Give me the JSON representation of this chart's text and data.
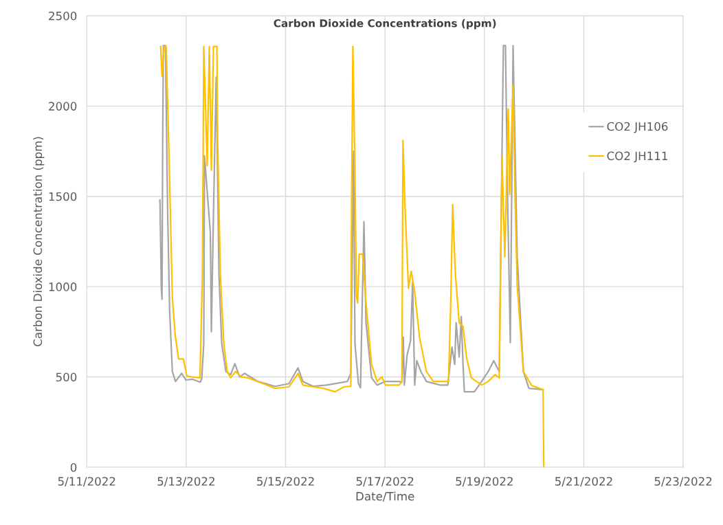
{
  "chart_data": {
    "type": "line",
    "title": "Carbon Dioxide Concentrations (ppm)",
    "xlabel": "Date/Time",
    "ylabel": "Carbon Dioxide Concentration (ppm)",
    "xlim": [
      "2022-05-11",
      "2022-05-23"
    ],
    "xticks": [
      {
        "value": "2022-05-11",
        "label": "5/11/2022"
      },
      {
        "value": "2022-05-13",
        "label": "5/13/2022"
      },
      {
        "value": "2022-05-15",
        "label": "5/15/2022"
      },
      {
        "value": "2022-05-17",
        "label": "5/17/2022"
      },
      {
        "value": "2022-05-19",
        "label": "5/19/2022"
      },
      {
        "value": "2022-05-21",
        "label": "5/21/2022"
      },
      {
        "value": "2022-05-23",
        "label": "5/23/2022"
      }
    ],
    "ylim": [
      0,
      2500
    ],
    "yticks": [
      0,
      500,
      1000,
      1500,
      2000,
      2500
    ],
    "grid": true,
    "legend": "right",
    "marker": "none",
    "line_style": "solid",
    "series": [
      {
        "name": "CO2 JH106",
        "color": "#a5a5a5",
        "x": [
          "2022-05-12T11:20",
          "2022-05-12T12:00",
          "2022-05-12T12:20",
          "2022-05-12T12:40",
          "2022-05-12T13:00",
          "2022-05-12T14:00",
          "2022-05-12T15:00",
          "2022-05-12T16:00",
          "2022-05-12T17:20",
          "2022-05-12T18:50",
          "2022-05-12T21:50",
          "2022-05-12T23:50",
          "2022-05-13T03:10",
          "2022-05-13T06:50",
          "2022-05-13T07:30",
          "2022-05-13T08:30",
          "2022-05-13T08:50",
          "2022-05-13T11:40",
          "2022-05-13T12:10",
          "2022-05-13T13:10",
          "2022-05-13T14:30",
          "2022-05-13T15:50",
          "2022-05-13T17:10",
          "2022-05-13T19:10",
          "2022-05-13T21:30",
          "2022-05-13T23:30",
          "2022-05-14T01:50",
          "2022-05-14T04:10",
          "2022-05-14T06:20",
          "2022-05-14T10:40",
          "2022-05-14T19:00",
          "2022-05-15T01:40",
          "2022-05-15T06:00",
          "2022-05-15T08:20",
          "2022-05-15T13:20",
          "2022-05-15T19:50",
          "2022-05-16T05:50",
          "2022-05-16T07:30",
          "2022-05-16T08:50",
          "2022-05-16T09:30",
          "2022-05-16T11:10",
          "2022-05-16T12:10",
          "2022-05-16T13:50",
          "2022-05-16T14:50",
          "2022-05-16T17:30",
          "2022-05-16T20:10",
          "2022-05-17T00:10",
          "2022-05-17T06:50",
          "2022-05-17T08:10",
          "2022-05-17T08:50",
          "2022-05-17T09:20",
          "2022-05-17T10:40",
          "2022-05-17T12:20",
          "2022-05-17T13:20",
          "2022-05-17T14:20",
          "2022-05-17T15:20",
          "2022-05-17T17:20",
          "2022-05-17T20:00",
          "2022-05-18T02:40",
          "2022-05-18T06:20",
          "2022-05-18T08:20",
          "2022-05-18T09:40",
          "2022-05-18T10:20",
          "2022-05-18T11:50",
          "2022-05-18T12:50",
          "2022-05-18T13:40",
          "2022-05-18T14:20",
          "2022-05-18T19:10",
          "2022-05-18T22:40",
          "2022-05-19T01:50",
          "2022-05-19T04:30",
          "2022-05-19T07:10",
          "2022-05-19T08:30",
          "2022-05-19T09:10",
          "2022-05-19T10:10",
          "2022-05-19T11:10",
          "2022-05-19T12:30",
          "2022-05-19T13:10",
          "2022-05-19T13:50",
          "2022-05-19T15:50",
          "2022-05-19T18:50",
          "2022-05-19T21:30",
          "2022-05-20T04:20"
        ],
        "values": [
          1480,
          990,
          930,
          1825,
          2335,
          2335,
          1445,
          875,
          530,
          475,
          520,
          483,
          487,
          471,
          490,
          685,
          1725,
          1300,
          750,
          1400,
          2160,
          1065,
          685,
          530,
          513,
          574,
          500,
          520,
          505,
          475,
          448,
          463,
          550,
          475,
          448,
          455,
          475,
          520,
          1750,
          685,
          464,
          440,
          1360,
          800,
          495,
          455,
          475,
          475,
          470,
          720,
          455,
          620,
          700,
          1025,
          455,
          590,
          530,
          475,
          455,
          455,
          665,
          570,
          800,
          610,
          835,
          570,
          418,
          418,
          475,
          530,
          590,
          530,
          1750,
          2335,
          2335,
          1500,
          690,
          1500,
          2335,
          1165,
          530,
          437,
          430
        ]
      },
      {
        "name": "CO2 JH111",
        "color": "#ffc000",
        "x": [
          "2022-05-12T11:40",
          "2022-05-12T12:20",
          "2022-05-12T13:20",
          "2022-05-12T14:20",
          "2022-05-12T15:40",
          "2022-05-12T17:20",
          "2022-05-12T18:40",
          "2022-05-12T20:20",
          "2022-05-12T22:40",
          "2022-05-13T00:20",
          "2022-05-13T03:10",
          "2022-05-13T06:40",
          "2022-05-13T07:50",
          "2022-05-13T08:30",
          "2022-05-13T10:10",
          "2022-05-13T11:10",
          "2022-05-13T12:10",
          "2022-05-13T13:10",
          "2022-05-13T14:50",
          "2022-05-13T15:10",
          "2022-05-13T16:30",
          "2022-05-13T18:10",
          "2022-05-13T19:50",
          "2022-05-13T21:30",
          "2022-05-13T23:50",
          "2022-05-14T02:30",
          "2022-05-14T05:50",
          "2022-05-14T12:20",
          "2022-05-14T19:00",
          "2022-05-15T01:40",
          "2022-05-15T06:00",
          "2022-05-15T08:20",
          "2022-05-15T13:20",
          "2022-05-15T18:20",
          "2022-05-15T23:50",
          "2022-05-16T04:10",
          "2022-05-16T07:30",
          "2022-05-16T07:50",
          "2022-05-16T08:30",
          "2022-05-16T09:30",
          "2022-05-16T10:10",
          "2022-05-16T10:50",
          "2022-05-16T11:30",
          "2022-05-16T13:10",
          "2022-05-16T14:50",
          "2022-05-16T17:30",
          "2022-05-16T20:10",
          "2022-05-16T22:30",
          "2022-05-17T00:10",
          "2022-05-17T06:50",
          "2022-05-17T08:10",
          "2022-05-17T08:40",
          "2022-05-17T09:40",
          "2022-05-17T11:20",
          "2022-05-17T12:40",
          "2022-05-17T14:20",
          "2022-05-17T16:40",
          "2022-05-17T20:00",
          "2022-05-17T23:20",
          "2022-05-18T06:40",
          "2022-05-18T07:40",
          "2022-05-18T08:40",
          "2022-05-18T10:00",
          "2022-05-18T11:50",
          "2022-05-18T13:40",
          "2022-05-18T15:20",
          "2022-05-18T17:40",
          "2022-05-18T22:40",
          "2022-05-19T01:50",
          "2022-05-19T05:10",
          "2022-05-19T07:10",
          "2022-05-19T08:30",
          "2022-05-19T09:50",
          "2022-05-19T11:30",
          "2022-05-19T12:10",
          "2022-05-19T13:50",
          "2022-05-19T14:50",
          "2022-05-19T15:50",
          "2022-05-19T18:50",
          "2022-05-19T22:50",
          "2022-05-20T04:20",
          "2022-05-20T04:40"
        ],
        "values": [
          2330,
          2165,
          2330,
          2330,
          1750,
          940,
          735,
          600,
          600,
          505,
          500,
          495,
          1065,
          2330,
          1670,
          2330,
          1645,
          2330,
          2330,
          1825,
          1065,
          685,
          530,
          495,
          530,
          500,
          495,
          467,
          437,
          445,
          520,
          455,
          445,
          437,
          418,
          445,
          448,
          1445,
          2330,
          1635,
          950,
          910,
          1180,
          1180,
          910,
          570,
          475,
          500,
          455,
          455,
          475,
          1810,
          1445,
          990,
          1085,
          970,
          720,
          530,
          475,
          475,
          875,
          1455,
          1065,
          800,
          780,
          610,
          495,
          455,
          475,
          513,
          495,
          1720,
          1165,
          1985,
          1510,
          2115,
          1480,
          1005,
          530,
          452,
          430,
          0
        ]
      }
    ]
  }
}
